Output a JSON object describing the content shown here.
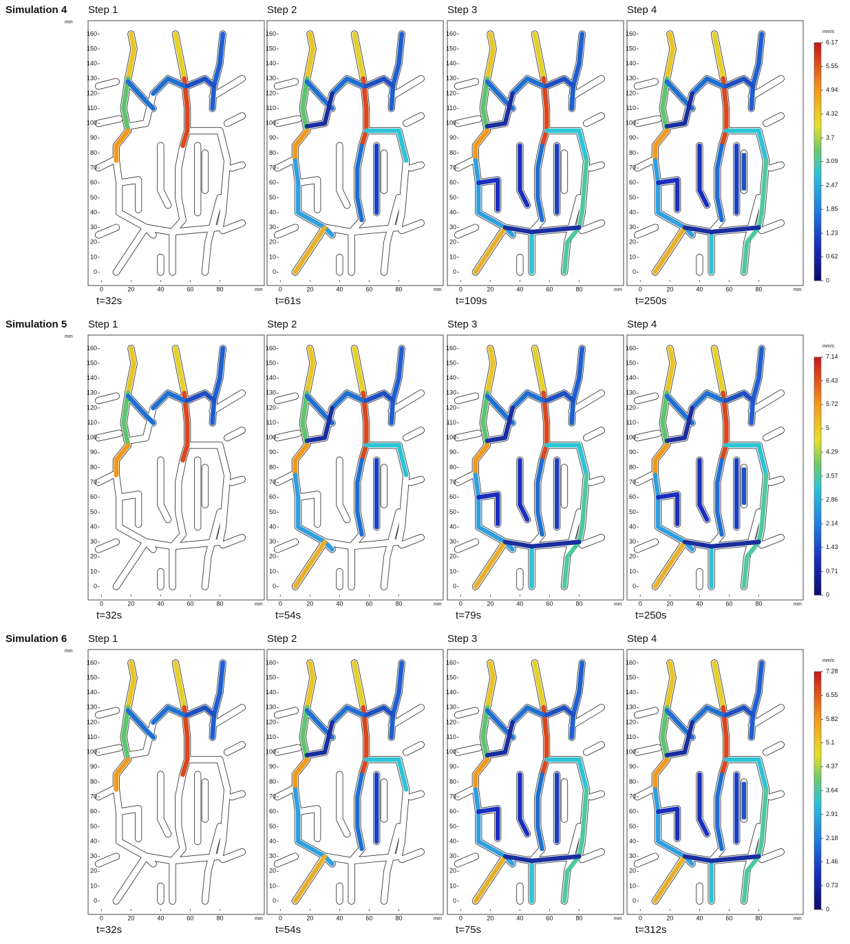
{
  "axes": {
    "xlim": [
      -9,
      110
    ],
    "ylim": [
      -9,
      169
    ],
    "xticks": [
      0,
      20,
      40,
      60,
      80
    ],
    "yticks": [
      0,
      10,
      20,
      30,
      40,
      50,
      60,
      70,
      80,
      90,
      100,
      110,
      120,
      130,
      140,
      150,
      160
    ],
    "x_unit": "mm",
    "y_unit": "mm"
  },
  "simulations": [
    {
      "title": "Simulation 4",
      "colorbar": {
        "unit": "mm/s",
        "lim": [
          0,
          6.17
        ],
        "ticks": [
          0,
          0.62,
          1.23,
          1.85,
          2.47,
          3.09,
          3.7,
          4.32,
          4.94,
          5.55,
          6.17
        ]
      },
      "steps": [
        {
          "label": "Step 1",
          "time": "t=32s"
        },
        {
          "label": "Step 2",
          "time": "t=61s"
        },
        {
          "label": "Step 3",
          "time": "t=109s"
        },
        {
          "label": "Step 4",
          "time": "t=250s"
        }
      ]
    },
    {
      "title": "Simulation 5",
      "colorbar": {
        "unit": "mm/s",
        "lim": [
          0,
          7.14
        ],
        "ticks": [
          0,
          0.71,
          1.43,
          2.14,
          2.86,
          3.57,
          4.29,
          5,
          5.72,
          6.43,
          7.14
        ]
      },
      "steps": [
        {
          "label": "Step 1",
          "time": "t=32s"
        },
        {
          "label": "Step 2",
          "time": "t=54s"
        },
        {
          "label": "Step 3",
          "time": "t=79s"
        },
        {
          "label": "Step 4",
          "time": "t=250s"
        }
      ]
    },
    {
      "title": "Simulation 6",
      "colorbar": {
        "unit": "mm/s",
        "lim": [
          0,
          7.28
        ],
        "ticks": [
          0,
          0.73,
          1.46,
          2.18,
          2.91,
          3.64,
          4.37,
          5.1,
          5.82,
          6.55,
          7.28
        ]
      },
      "steps": [
        {
          "label": "Step 1",
          "time": "t=32s"
        },
        {
          "label": "Step 2",
          "time": "t=54s"
        },
        {
          "label": "Step 3",
          "time": "t=75s"
        },
        {
          "label": "Step 4",
          "time": "t=312s"
        }
      ]
    }
  ]
}
